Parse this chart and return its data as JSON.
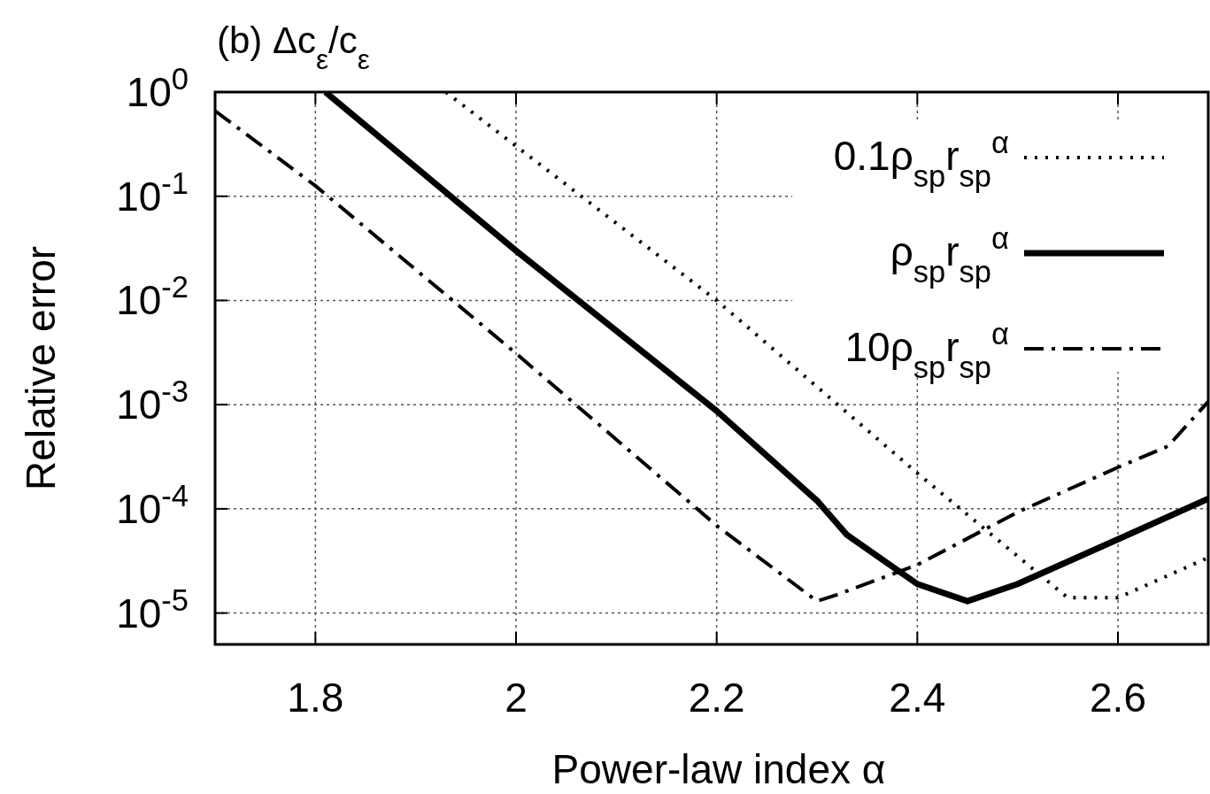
{
  "chart_data": {
    "type": "line",
    "title": "(b) Δc$_{ε}$/c$_{ε}$",
    "xlabel": "Power-law index α",
    "ylabel": "Relative error",
    "log": "y",
    "grid": true,
    "legend": "top right",
    "xlim": [
      1.7,
      2.69
    ],
    "xticks": [
      1.8,
      2,
      2.2,
      2.4,
      2.6
    ],
    "ylim": [
      5e-06,
      1
    ],
    "yticks": [
      {
        "value": 1,
        "label": "10$^{0}$"
      },
      {
        "value": 0.1,
        "label": "10$^{-1}$"
      },
      {
        "value": 0.01,
        "label": "10$^{-2}$"
      },
      {
        "value": 0.001,
        "label": "10$^{-3}$"
      },
      {
        "value": 0.0001,
        "label": "10$^{-4}$"
      },
      {
        "value": 1e-05,
        "label": "10$^{-5}$"
      }
    ],
    "series": [
      {
        "name": "0.1ρ$_{sp}$r$_{sp}$$^{α}$",
        "color": "#000000",
        "line_style": "dotted",
        "x": [
          1.93,
          2.2,
          2.4,
          2.55,
          2.6,
          2.69
        ],
        "values": [
          1,
          0.01,
          0.00022,
          1.4e-05,
          1.4e-05,
          3.4e-05
        ]
      },
      {
        "name": "ρ$_{sp}$r$_{sp}$$^{α}$",
        "color": "#000000",
        "line_style": "solid",
        "x": [
          1.81,
          2.0,
          2.2,
          2.3,
          2.33,
          2.4,
          2.45,
          2.5,
          2.6,
          2.69
        ],
        "values": [
          1,
          0.03,
          0.00087,
          0.00012,
          5.6e-05,
          1.9e-05,
          1.3e-05,
          1.9e-05,
          5.1e-05,
          0.000125
        ]
      },
      {
        "name": "10ρ$_{sp}$r$_{sp}$$^{α}$",
        "color": "#000000",
        "line_style": "dashdot",
        "x": [
          1.7,
          1.8,
          2.0,
          2.2,
          2.3,
          2.32,
          2.4,
          2.5,
          2.6,
          2.65,
          2.69
        ],
        "values": [
          0.66,
          0.126,
          0.0031,
          6.9e-05,
          1.3e-05,
          1.5e-05,
          2.9e-05,
          9.3e-05,
          0.00025,
          0.0004,
          0.00107
        ]
      }
    ]
  }
}
